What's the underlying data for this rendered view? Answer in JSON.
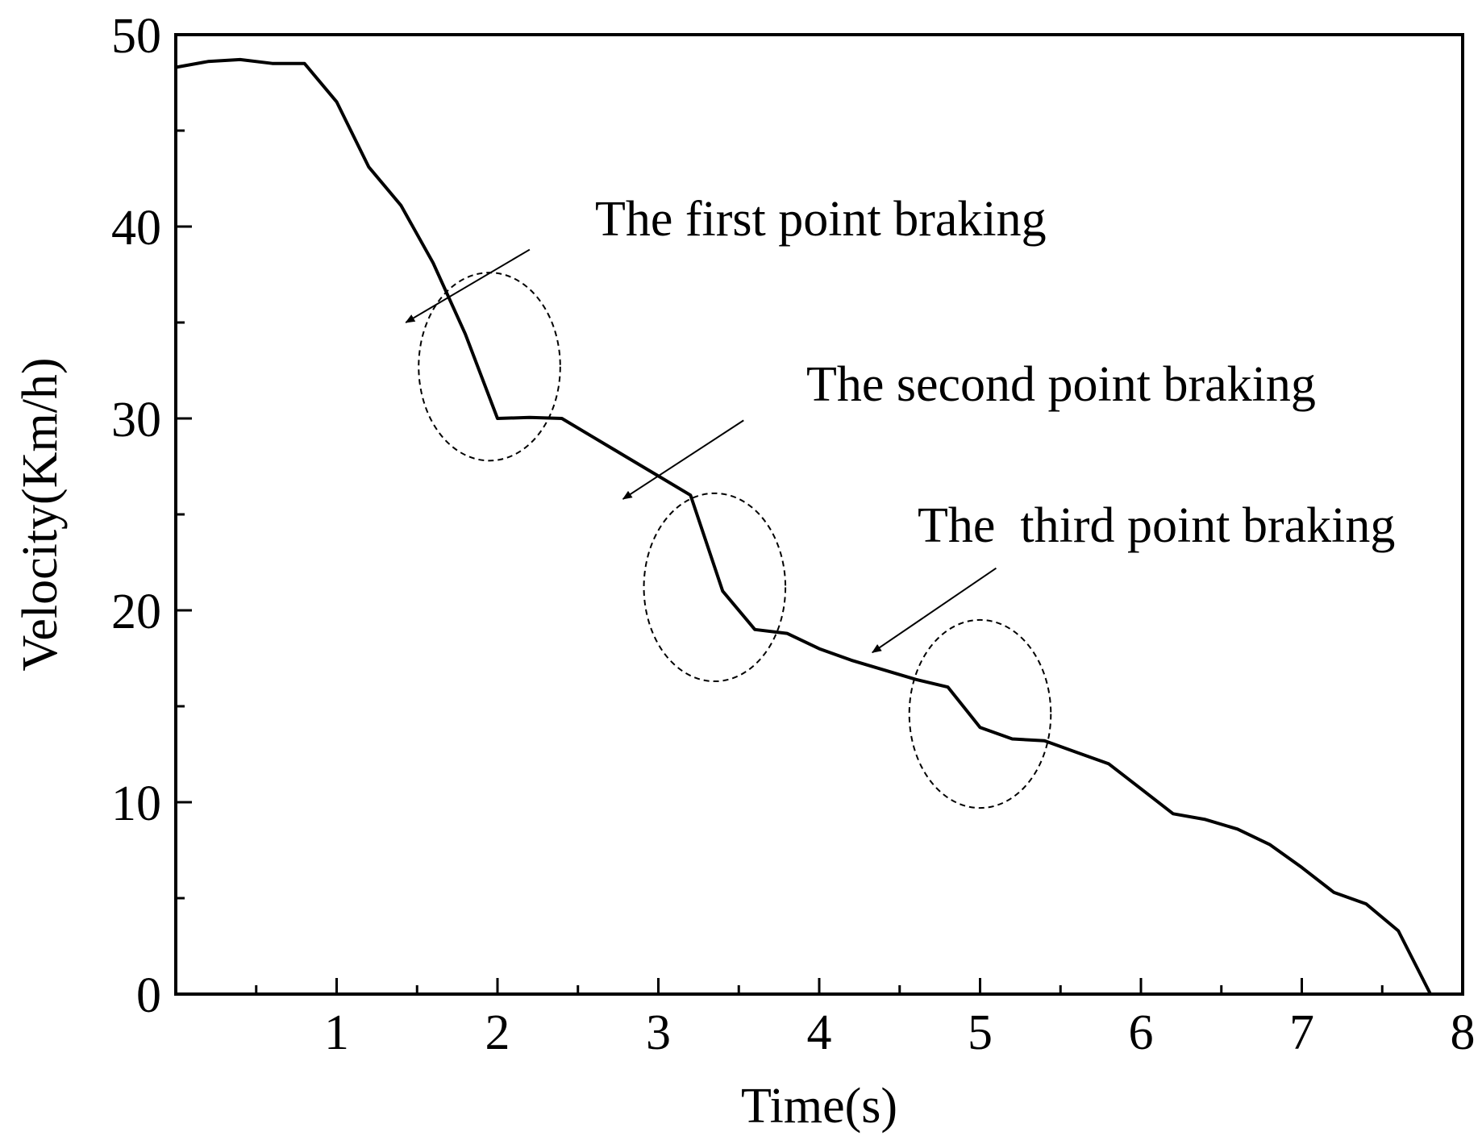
{
  "chart_data": {
    "type": "line",
    "xlabel": "Time(s)",
    "ylabel": "Velocity(Km/h)",
    "xlim": [
      0,
      8
    ],
    "ylim": [
      0,
      50
    ],
    "x_ticks": [
      1,
      2,
      3,
      4,
      5,
      6,
      7,
      8
    ],
    "y_ticks": [
      0,
      10,
      20,
      30,
      40,
      50
    ],
    "grid": false,
    "series": [
      {
        "color": "#000000",
        "points": [
          [
            0.0,
            48.3
          ],
          [
            0.2,
            48.6
          ],
          [
            0.4,
            48.7
          ],
          [
            0.6,
            48.5
          ],
          [
            0.8,
            48.5
          ],
          [
            1.0,
            46.5
          ],
          [
            1.2,
            43.1
          ],
          [
            1.4,
            41.1
          ],
          [
            1.6,
            38.1
          ],
          [
            1.8,
            34.4
          ],
          [
            2.0,
            30.0
          ],
          [
            2.2,
            30.05
          ],
          [
            2.4,
            30.0
          ],
          [
            2.6,
            29.0
          ],
          [
            2.8,
            28.0
          ],
          [
            3.0,
            27.0
          ],
          [
            3.2,
            26.0
          ],
          [
            3.4,
            21.0
          ],
          [
            3.6,
            19.0
          ],
          [
            3.8,
            18.8
          ],
          [
            4.0,
            18.0
          ],
          [
            4.2,
            17.4
          ],
          [
            4.4,
            16.9
          ],
          [
            4.6,
            16.4
          ],
          [
            4.8,
            16.0
          ],
          [
            5.0,
            13.9
          ],
          [
            5.2,
            13.3
          ],
          [
            5.4,
            13.2
          ],
          [
            5.6,
            12.6
          ],
          [
            5.8,
            12.0
          ],
          [
            6.0,
            10.7
          ],
          [
            6.2,
            9.4
          ],
          [
            6.4,
            9.1
          ],
          [
            6.6,
            8.6
          ],
          [
            6.8,
            7.8
          ],
          [
            7.0,
            6.6
          ],
          [
            7.2,
            5.3
          ],
          [
            7.4,
            4.7
          ],
          [
            7.6,
            3.3
          ],
          [
            7.8,
            0.0
          ]
        ]
      }
    ],
    "annotations": [
      {
        "text": "The first point braking",
        "ellipse": {
          "center": [
            1.95,
            32.7
          ],
          "rx": 0.44,
          "ry": 4.9
        },
        "arrow": {
          "from": [
            2.2,
            38.8
          ],
          "to": [
            1.43,
            35.0
          ]
        }
      },
      {
        "text": "The second point braking",
        "ellipse": {
          "center": [
            3.35,
            21.2
          ],
          "rx": 0.44,
          "ry": 4.9
        },
        "arrow": {
          "from": [
            3.53,
            29.9
          ],
          "to": [
            2.78,
            25.8
          ]
        }
      },
      {
        "text": "The  third point braking",
        "ellipse": {
          "center": [
            5.0,
            14.6
          ],
          "rx": 0.44,
          "ry": 4.9
        },
        "arrow": {
          "from": [
            5.1,
            22.2
          ],
          "to": [
            4.33,
            17.8
          ]
        }
      }
    ]
  }
}
